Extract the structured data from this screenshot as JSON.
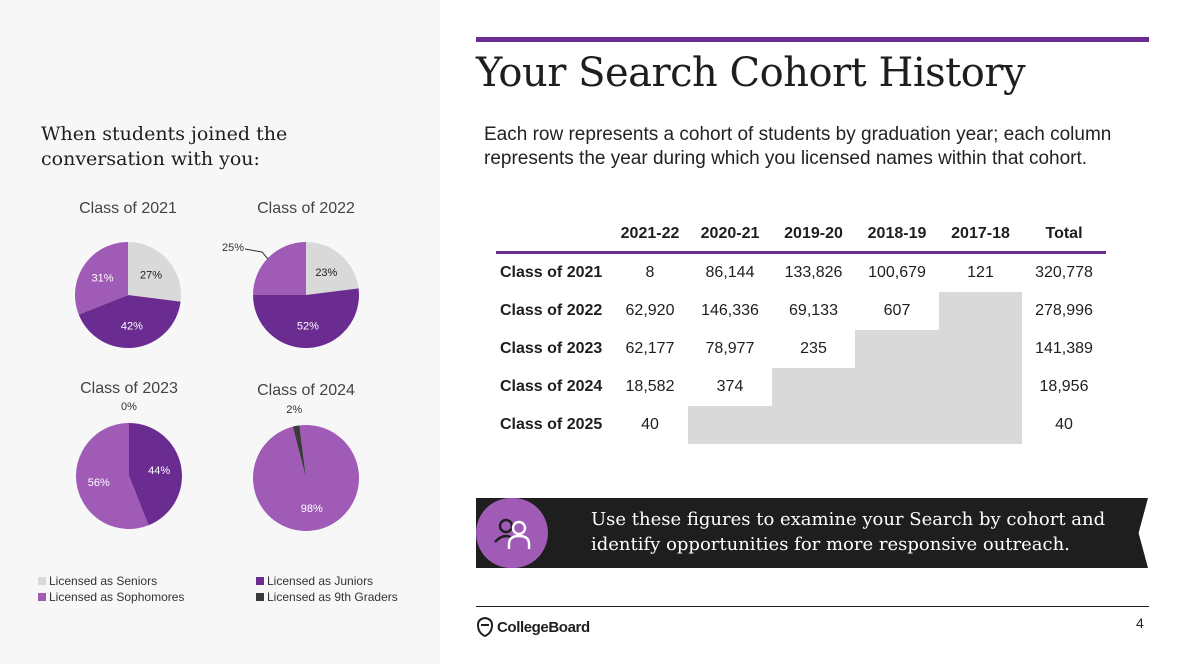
{
  "left": {
    "heading": "When students joined the conversation with you:"
  },
  "colors": {
    "seniors": "#d9d9d9",
    "juniors": "#6b2c91",
    "sophomores": "#a05bb7",
    "ninth": "#3a3a3a",
    "accent": "#6b2c91"
  },
  "legend": [
    {
      "label": "Licensed as Seniors",
      "color": "#d9d9d9"
    },
    {
      "label": "Licensed as Juniors",
      "color": "#6b2c91"
    },
    {
      "label": "Licensed as Sophomores",
      "color": "#a05bb7"
    },
    {
      "label": "Licensed as 9th Graders",
      "color": "#3a3a3a"
    }
  ],
  "chart_data": [
    {
      "type": "pie",
      "title": "Class of 2021",
      "series": [
        {
          "name": "Licensed as Seniors",
          "value": 27,
          "label": "27%"
        },
        {
          "name": "Licensed as Juniors",
          "value": 42,
          "label": "42%"
        },
        {
          "name": "Licensed as Sophomores",
          "value": 31,
          "label": "31%"
        }
      ]
    },
    {
      "type": "pie",
      "title": "Class of 2022",
      "series": [
        {
          "name": "Licensed as Seniors",
          "value": 23,
          "label": "23%"
        },
        {
          "name": "Licensed as Juniors",
          "value": 52,
          "label": "52%"
        },
        {
          "name": "Licensed as Sophomores",
          "value": 25,
          "label": "25%"
        }
      ]
    },
    {
      "type": "pie",
      "title": "Class of 2023",
      "series": [
        {
          "name": "Licensed as Juniors",
          "value": 44,
          "label": "44%"
        },
        {
          "name": "Licensed as Sophomores",
          "value": 56,
          "label": "56%"
        },
        {
          "name": "Licensed as 9th Graders",
          "value": 0,
          "label": "0%"
        }
      ]
    },
    {
      "type": "pie",
      "title": "Class of 2024",
      "series": [
        {
          "name": "Licensed as Sophomores",
          "value": 98,
          "label": "98%"
        },
        {
          "name": "Licensed as 9th Graders",
          "value": 2,
          "label": "2%"
        }
      ]
    },
    {
      "type": "table",
      "title": "Your Search Cohort History",
      "columns": [
        "",
        "2021-22",
        "2020-21",
        "2019-20",
        "2018-19",
        "2017-18",
        "Total"
      ],
      "rows": [
        [
          "Class of 2021",
          "8",
          "86,144",
          "133,826",
          "100,679",
          "121",
          "320,778"
        ],
        [
          "Class of 2022",
          "62,920",
          "146,336",
          "69,133",
          "607",
          "",
          "278,996"
        ],
        [
          "Class of 2023",
          "62,177",
          "78,977",
          "235",
          "",
          "",
          "141,389"
        ],
        [
          "Class of 2024",
          "18,582",
          "374",
          "",
          "",
          "",
          "18,956"
        ],
        [
          "Class of 2025",
          "40",
          "",
          "",
          "",
          "",
          "40"
        ]
      ]
    }
  ],
  "title": "Your Search Cohort History",
  "subtitle": "Each row represents a cohort of students by graduation year; each column represents the year during which you licensed names within that cohort.",
  "banner": {
    "icon": "people-icon",
    "text": "Use these figures to examine your Search by cohort and identify opportunities for more responsive outreach."
  },
  "footer": {
    "logo": "CollegeBoard",
    "page_number": "4"
  }
}
